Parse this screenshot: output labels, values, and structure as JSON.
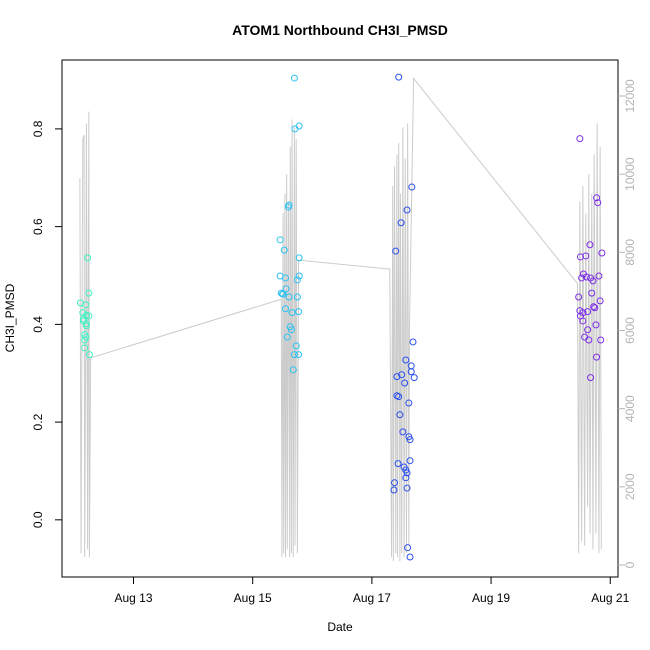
{
  "chart_data": {
    "type": "scatter",
    "title": "ATOM1 Northbound CH3I_PMSD",
    "xlabel": "Date",
    "ylabel": "CH3I_PMSD",
    "xlim": [
      11.8,
      21.13
    ],
    "xticks": [
      {
        "value": 13,
        "label": "Aug 13"
      },
      {
        "value": 15,
        "label": "Aug 15"
      },
      {
        "value": 17,
        "label": "Aug 17"
      },
      {
        "value": 19,
        "label": "Aug 19"
      },
      {
        "value": 21,
        "label": "Aug 21"
      }
    ],
    "ylim": [
      -0.117,
      0.941
    ],
    "yticks": [
      {
        "value": 0,
        "label": "0.0"
      },
      0.2,
      0.4,
      0.6,
      0.8
    ],
    "y2lim": [
      -307,
      12921
    ],
    "y2ticks": [
      0,
      2000,
      4000,
      6000,
      8000,
      10000,
      12000
    ],
    "y2color": "#b4b4b4",
    "series": [
      {
        "style": "line",
        "axis": "y2",
        "color": "#cccccc",
        "x": [
          12.1,
          12.12,
          12.14,
          12.15,
          12.17,
          12.18,
          12.2,
          12.21,
          12.23,
          12.25,
          12.26,
          12.28,
          15.48,
          15.49,
          15.51,
          15.52,
          15.54,
          15.55,
          15.57,
          15.58,
          15.6,
          15.62,
          15.63,
          15.65,
          15.66,
          15.68,
          15.7,
          15.71,
          15.73,
          15.75,
          15.77,
          17.3,
          17.33,
          17.35,
          17.36,
          17.38,
          17.4,
          17.42,
          17.43,
          17.45,
          17.47,
          17.48,
          17.5,
          17.52,
          17.54,
          17.56,
          17.58,
          17.6,
          17.62,
          17.63,
          17.7,
          20.45,
          20.47,
          20.49,
          20.52,
          20.54,
          20.57,
          20.59,
          20.62,
          20.64,
          20.66,
          20.69,
          20.71,
          20.73,
          20.76,
          20.78,
          20.81,
          20.83,
          20.85
        ],
        "values": [
          9900,
          300,
          7800,
          10900,
          11000,
          200,
          6500,
          11300,
          400,
          11600,
          200,
          5300,
          6800,
          200,
          9000,
          300,
          9500,
          200,
          10000,
          400,
          9300,
          200,
          10700,
          300,
          11400,
          200,
          11200,
          500,
          10900,
          300,
          7800,
          7570,
          200,
          9700,
          100,
          10200,
          300,
          10500,
          200,
          10800,
          100,
          9500,
          300,
          11200,
          200,
          10400,
          300,
          11300,
          500,
          6000,
          12450,
          7200,
          300,
          9300,
          600,
          9700,
          500,
          9000,
          1500,
          10000,
          800,
          9500,
          400,
          10500,
          800,
          11300,
          300,
          10700,
          400
        ]
      },
      {
        "style": "points",
        "color": "#3ff2c4",
        "x": [
          12.11,
          12.15,
          12.16,
          12.16,
          12.18,
          12.18,
          12.2,
          12.21,
          12.21,
          12.21,
          12.23,
          12.25,
          12.25,
          12.2,
          12.26,
          12.18
        ],
        "values": [
          0.444,
          0.424,
          0.411,
          0.407,
          0.368,
          0.352,
          0.374,
          0.401,
          0.419,
          0.397,
          0.536,
          0.464,
          0.417,
          0.44,
          0.338,
          0.379
        ]
      },
      {
        "style": "points",
        "color": "#2cc2f2",
        "x": [
          15.46,
          15.46,
          15.48,
          15.5,
          15.51,
          15.53,
          15.55,
          15.55,
          15.56,
          15.58,
          15.6,
          15.61,
          15.61,
          15.63,
          15.65,
          15.66,
          15.68,
          15.7,
          15.7,
          15.71,
          15.73,
          15.75,
          15.75,
          15.77,
          15.78,
          15.78,
          15.77,
          15.78
        ],
        "values": [
          0.573,
          0.499,
          0.464,
          0.462,
          0.462,
          0.552,
          0.495,
          0.432,
          0.473,
          0.374,
          0.64,
          0.644,
          0.456,
          0.395,
          0.389,
          0.424,
          0.307,
          0.904,
          0.338,
          0.8,
          0.356,
          0.491,
          0.456,
          0.426,
          0.536,
          0.806,
          0.338,
          0.499
        ]
      },
      {
        "style": "points",
        "color": "#2b4fec",
        "x": [
          17.37,
          17.38,
          17.4,
          17.42,
          17.42,
          17.44,
          17.45,
          17.45,
          17.47,
          17.49,
          17.5,
          17.52,
          17.54,
          17.55,
          17.57,
          17.57,
          17.59,
          17.59,
          17.59,
          17.6,
          17.62,
          17.62,
          17.64,
          17.64,
          17.64,
          17.66,
          17.66,
          17.67,
          17.69,
          17.71,
          17.57
        ],
        "values": [
          0.061,
          0.076,
          0.55,
          0.293,
          0.254,
          0.115,
          0.906,
          0.252,
          0.215,
          0.608,
          0.297,
          0.18,
          0.108,
          0.28,
          0.102,
          0.086,
          0.634,
          0.096,
          0.065,
          -0.057,
          0.239,
          0.17,
          0.164,
          -0.076,
          0.121,
          0.303,
          0.315,
          0.681,
          0.364,
          0.291,
          0.327
        ]
      },
      {
        "style": "points",
        "color": "#7d2ee6",
        "x": [
          20.49,
          20.47,
          20.49,
          20.5,
          20.5,
          20.52,
          20.54,
          20.54,
          20.55,
          20.57,
          20.59,
          20.6,
          20.62,
          20.62,
          20.64,
          20.66,
          20.67,
          20.67,
          20.69,
          20.71,
          20.72,
          20.74,
          20.76,
          20.77,
          20.77,
          20.79,
          20.81,
          20.83,
          20.84,
          20.86
        ],
        "values": [
          0.78,
          0.456,
          0.428,
          0.538,
          0.417,
          0.495,
          0.407,
          0.424,
          0.503,
          0.374,
          0.54,
          0.497,
          0.389,
          0.426,
          0.368,
          0.563,
          0.291,
          0.495,
          0.464,
          0.489,
          0.436,
          0.434,
          0.399,
          0.333,
          0.659,
          0.649,
          0.499,
          0.448,
          0.368,
          0.546
        ]
      }
    ]
  }
}
